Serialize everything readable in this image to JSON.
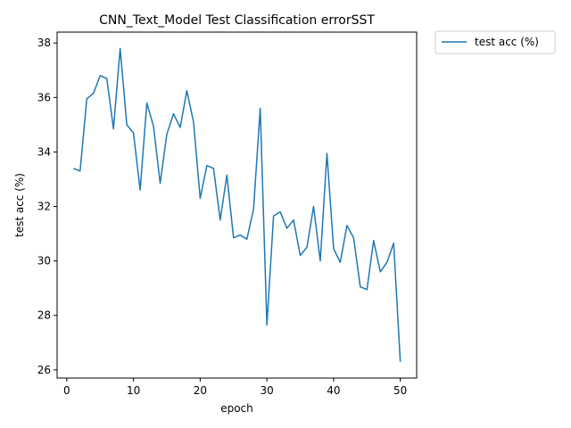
{
  "chart_data": {
    "type": "line",
    "title": "CNN_Text_Model Test Classification errorSST",
    "xlabel": "epoch",
    "ylabel": "test acc (%)",
    "xlim": [
      -1.45,
      52.45
    ],
    "ylim": [
      25.7,
      38.4
    ],
    "xticks": [
      0,
      10,
      20,
      30,
      40,
      50
    ],
    "yticks": [
      26,
      28,
      30,
      32,
      34,
      36,
      38
    ],
    "legend_position": "outside-top-right",
    "grid": false,
    "series": [
      {
        "name": "test acc (%)",
        "color": "#1f77b4",
        "x": [
          1,
          2,
          3,
          4,
          5,
          6,
          7,
          8,
          9,
          10,
          11,
          12,
          13,
          14,
          15,
          16,
          17,
          18,
          19,
          20,
          21,
          22,
          23,
          24,
          25,
          26,
          27,
          28,
          29,
          30,
          31,
          32,
          33,
          34,
          35,
          36,
          37,
          38,
          39,
          40,
          41,
          42,
          43,
          44,
          45,
          46,
          47,
          48,
          49,
          50
        ],
        "y": [
          33.4,
          33.3,
          35.95,
          36.15,
          36.8,
          36.7,
          34.85,
          37.8,
          35.0,
          34.7,
          32.6,
          35.8,
          34.95,
          32.85,
          34.65,
          35.4,
          34.9,
          36.25,
          35.1,
          32.3,
          33.5,
          33.4,
          31.5,
          33.15,
          30.85,
          30.95,
          30.8,
          31.9,
          35.6,
          27.65,
          31.65,
          31.8,
          31.2,
          31.5,
          30.2,
          30.5,
          32.0,
          30.0,
          33.95,
          30.45,
          29.95,
          31.3,
          30.85,
          29.05,
          28.95,
          30.75,
          29.6,
          29.95,
          30.65,
          26.3
        ]
      }
    ]
  }
}
